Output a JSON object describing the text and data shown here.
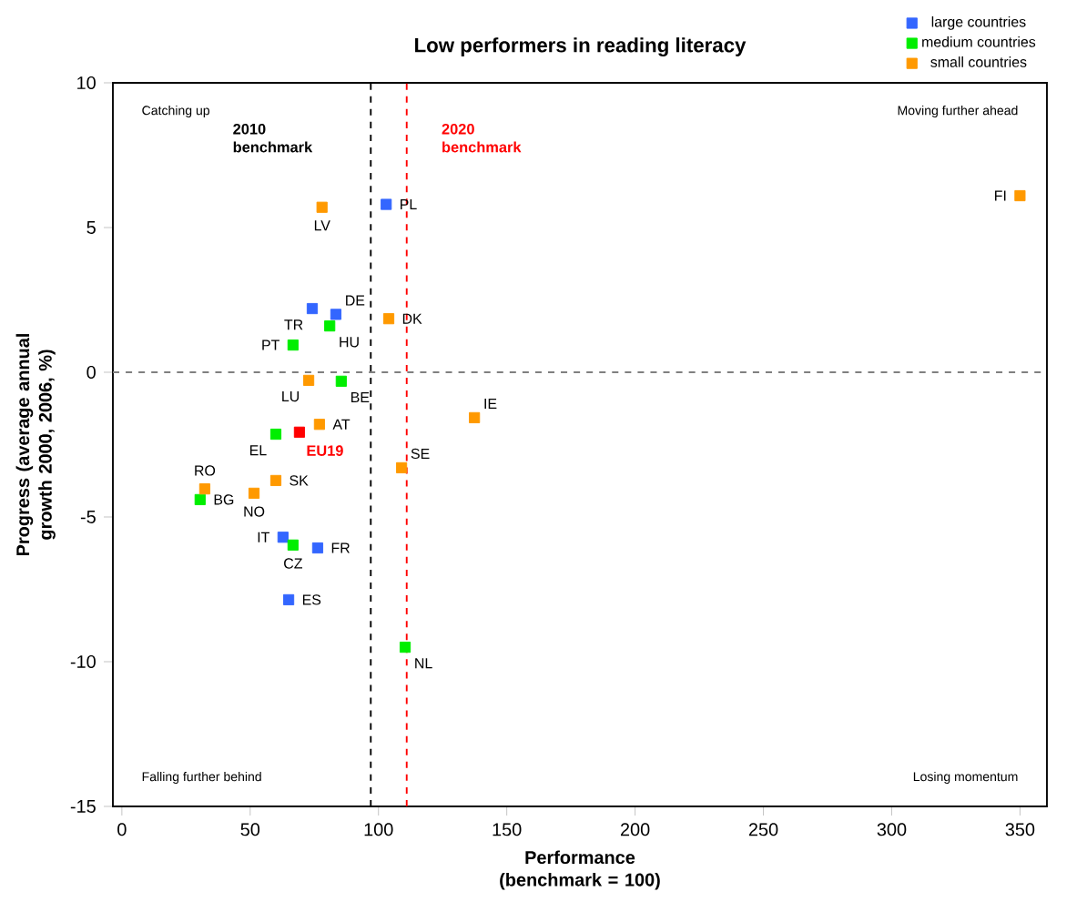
{
  "chart_data": {
    "type": "scatter",
    "title": "Low performers in reading literacy",
    "xlabel": "Performance (benchmark = 100)",
    "ylabel": "Progress (average annual growth 2000, 2006, %)",
    "xlim": [
      -3.5,
      360.5
    ],
    "ylim": [
      -15,
      10
    ],
    "xticks": [
      0,
      50,
      100,
      150,
      200,
      250,
      300,
      350
    ],
    "yticks": [
      -15,
      -10,
      -5,
      0,
      5,
      10
    ],
    "marker": "square",
    "legend": "top right",
    "grid": false,
    "series": [
      {
        "name": "large countries",
        "color": "#3366ff",
        "x": [
          103,
          83.4,
          74.2,
          62.8,
          76.3,
          65
        ],
        "values": [
          5.8,
          2.0,
          2.2,
          -5.7,
          -6.07,
          -7.86
        ]
      },
      {
        "name": "medium countries",
        "color": "#00ee00",
        "x": [
          81,
          66.7,
          85.5,
          60,
          30.5,
          66.7,
          110.4
        ],
        "values": [
          1.6,
          0.94,
          -0.31,
          -2.14,
          -4.4,
          -5.97,
          -9.5
        ]
      },
      {
        "name": "small countries",
        "color": "#ff9900",
        "x": [
          78,
          350,
          104,
          72.8,
          77,
          137.4,
          109,
          60,
          32.3,
          51.5
        ],
        "values": [
          5.7,
          6.1,
          1.85,
          -0.28,
          -1.8,
          -1.57,
          -3.3,
          -3.74,
          -4.03,
          -4.18
        ]
      },
      {
        "name": "EU19",
        "color": "#ff0000",
        "x": [
          69.2
        ],
        "values": [
          -2.07
        ]
      }
    ],
    "ref_lines": [
      {
        "axis": "x",
        "value": 97,
        "label": "2010 benchmark",
        "color": "#000000",
        "line_style": "dashed"
      },
      {
        "axis": "x",
        "value": 111,
        "label": "2020 benchmark",
        "color": "#ff0000",
        "line_style": "dashed"
      },
      {
        "axis": "y",
        "value": 0,
        "color": "#808080",
        "line_style": "dashed"
      }
    ],
    "annotations": [
      "Catching up",
      "Moving further ahead",
      "Falling further behind",
      "Losing momentum",
      {
        "text": "PL",
        "x": 103,
        "y": 5.8
      },
      {
        "text": "LV",
        "x": 78,
        "y": 5.7
      },
      {
        "text": "FI",
        "x": 350,
        "y": 6.1
      },
      {
        "text": "DE",
        "x": 83.4,
        "y": 2.0
      },
      {
        "text": "TR",
        "x": 74.2,
        "y": 2.2
      },
      {
        "text": "HU",
        "x": 81,
        "y": 1.6
      },
      {
        "text": "DK",
        "x": 104,
        "y": 1.85
      },
      {
        "text": "PT",
        "x": 66.7,
        "y": 0.94
      },
      {
        "text": "LU",
        "x": 72.8,
        "y": -0.28
      },
      {
        "text": "BE",
        "x": 85.5,
        "y": -0.31
      },
      {
        "text": "AT",
        "x": 77,
        "y": -1.8
      },
      {
        "text": "EL",
        "x": 60,
        "y": -2.14
      },
      {
        "text": "IE",
        "x": 137.4,
        "y": -1.57
      },
      {
        "text": "SE",
        "x": 109,
        "y": -3.3
      },
      {
        "text": "SK",
        "x": 60,
        "y": -3.74
      },
      {
        "text": "RO",
        "x": 32.3,
        "y": -4.03
      },
      {
        "text": "NO",
        "x": 51.5,
        "y": -4.18
      },
      {
        "text": "BG",
        "x": 30.5,
        "y": -4.4
      },
      {
        "text": "IT",
        "x": 62.8,
        "y": -5.7
      },
      {
        "text": "CZ",
        "x": 66.7,
        "y": -5.97
      },
      {
        "text": "FR",
        "x": 76.3,
        "y": -6.07
      },
      {
        "text": "ES",
        "x": 65,
        "y": -7.86
      },
      {
        "text": "NL",
        "x": 110.4,
        "y": -9.5
      }
    ]
  }
}
